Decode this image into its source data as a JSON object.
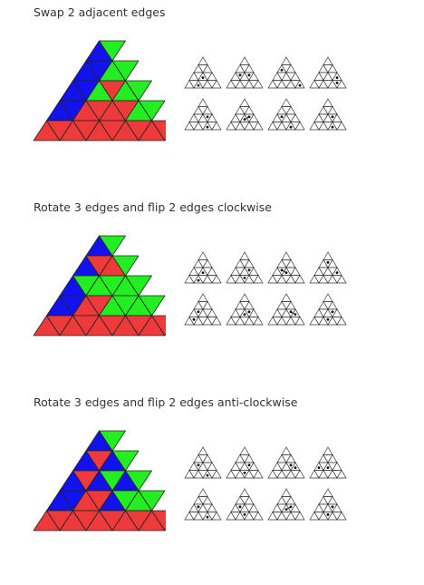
{
  "colors": {
    "red": "#ee3a3a",
    "green": "#22ee22",
    "blue": "#1212ee",
    "line": "#222222"
  },
  "sections": [
    {
      "title": "Swap 2 adjacent edges",
      "facelets": [
        [
          "B",
          "G"
        ],
        [
          "B",
          "B",
          "G",
          "G"
        ],
        [
          "B",
          "B",
          "G",
          "R",
          "G",
          "G"
        ],
        [
          "B",
          "B",
          "R",
          "R",
          "R",
          "R",
          "G",
          "G"
        ],
        [
          "R",
          "R",
          "R",
          "R",
          "R",
          "R",
          "R",
          "R",
          "R",
          "R"
        ]
      ],
      "minis": [
        {
          "dots": [
            [
              2,
              2
            ],
            [
              3,
              2
            ]
          ],
          "lines": []
        },
        {
          "dots": [
            [
              2,
              1
            ],
            [
              2,
              3
            ]
          ],
          "lines": []
        },
        {
          "dots": [
            [
              1,
              0
            ],
            [
              3,
              6
            ]
          ],
          "lines": []
        },
        {
          "dots": [
            [
              2,
              4
            ],
            [
              3,
              5
            ]
          ],
          "lines": []
        },
        {
          "dots": [
            [
              2,
              3
            ],
            [
              3,
              4
            ]
          ],
          "lines": []
        },
        {
          "dots": [
            [
              2,
              2
            ],
            [
              2,
              3
            ]
          ],
          "lines": [
            [
              2,
              2,
              2,
              3
            ]
          ]
        },
        {
          "dots": [
            [
              2,
              1
            ],
            [
              3,
              4
            ]
          ],
          "lines": []
        },
        {
          "dots": [
            [
              2,
              3
            ],
            [
              3,
              4
            ]
          ],
          "lines": []
        }
      ]
    },
    {
      "title": "Rotate 3 edges and flip 2 edges clockwise",
      "facelets": [
        [
          "B",
          "G"
        ],
        [
          "B",
          "R",
          "R",
          "G"
        ],
        [
          "B",
          "G",
          "G",
          "G",
          "G",
          "G"
        ],
        [
          "B",
          "B",
          "R",
          "R",
          "G",
          "G",
          "G",
          "G"
        ],
        [
          "R",
          "R",
          "R",
          "R",
          "R",
          "R",
          "R",
          "R",
          "R",
          "R"
        ]
      ],
      "minis": [
        {
          "dots": [
            [
              2,
              2
            ],
            [
              3,
              2
            ]
          ],
          "lines": []
        },
        {
          "dots": [
            [
              2,
              3
            ],
            [
              3,
              3
            ]
          ],
          "lines": []
        },
        {
          "dots": [
            [
              2,
              1
            ],
            [
              2,
              2
            ]
          ],
          "lines": [
            [
              2,
              1,
              2,
              2
            ]
          ]
        },
        {
          "dots": [
            [
              1,
              1
            ],
            [
              2,
              4
            ]
          ],
          "lines": []
        },
        {
          "dots": [
            [
              2,
              1
            ],
            [
              3,
              1
            ]
          ],
          "lines": []
        },
        {
          "dots": [
            [
              2,
              2
            ],
            [
              2,
              3
            ]
          ],
          "lines": []
        },
        {
          "dots": [
            [
              2,
              3
            ],
            [
              2,
              4
            ]
          ],
          "lines": [
            [
              2,
              3,
              2,
              4
            ]
          ]
        },
        {
          "dots": [
            [
              2,
              3
            ],
            [
              3,
              3
            ]
          ],
          "lines": []
        }
      ]
    },
    {
      "title": "Rotate 3 edges and flip 2 edges anti-clockwise",
      "facelets": [
        [
          "B",
          "G"
        ],
        [
          "B",
          "R",
          "B",
          "G"
        ],
        [
          "B",
          "R",
          "B",
          "G",
          "B",
          "G"
        ],
        [
          "B",
          "B",
          "R",
          "R",
          "B",
          "G",
          "G",
          "G"
        ],
        [
          "R",
          "R",
          "R",
          "R",
          "R",
          "R",
          "R",
          "R",
          "R",
          "R"
        ]
      ],
      "minis": [
        {
          "dots": [
            [
              2,
              1
            ],
            [
              3,
              4
            ]
          ],
          "lines": []
        },
        {
          "dots": [
            [
              2,
              3
            ],
            [
              3,
              3
            ]
          ],
          "lines": []
        },
        {
          "dots": [
            [
              2,
              3
            ],
            [
              2,
              4
            ]
          ],
          "lines": []
        },
        {
          "dots": [
            [
              2,
              0
            ],
            [
              2,
              2
            ]
          ],
          "lines": []
        },
        {
          "dots": [
            [
              2,
              1
            ],
            [
              3,
              4
            ]
          ],
          "lines": []
        },
        {
          "dots": [
            [
              2,
              1
            ],
            [
              3,
              3
            ]
          ],
          "lines": []
        },
        {
          "dots": [
            [
              2,
              2
            ],
            [
              2,
              3
            ]
          ],
          "lines": [
            [
              2,
              2,
              2,
              3
            ]
          ]
        },
        {
          "dots": [
            [
              2,
              3
            ],
            [
              3,
              3
            ]
          ],
          "lines": []
        }
      ]
    }
  ]
}
